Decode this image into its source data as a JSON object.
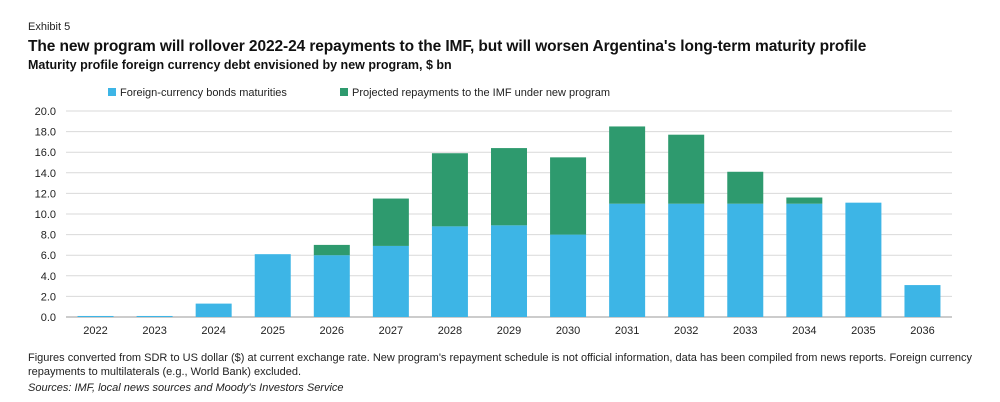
{
  "header": {
    "exhibit": "Exhibit 5",
    "title": "The new program will rollover 2022-24 repayments to the IMF, but will worsen Argentina's long-term maturity profile",
    "subtitle": "Maturity profile foreign currency debt envisioned by new program, $ bn"
  },
  "footer": {
    "note": "Figures converted from SDR to US dollar ($) at current exchange rate. New program's repayment schedule is not official information, data has been compiled from news reports. Foreign currency repayments to multilaterals (e.g., World Bank) excluded.",
    "sources": "Sources: IMF, local news sources and Moody's Investors Service"
  },
  "chart_data": {
    "type": "bar",
    "stacked": true,
    "categories": [
      "2022",
      "2023",
      "2024",
      "2025",
      "2026",
      "2027",
      "2028",
      "2029",
      "2030",
      "2031",
      "2032",
      "2033",
      "2034",
      "2035",
      "2036"
    ],
    "series": [
      {
        "name": "Foreign-currency bonds maturities",
        "color": "#3db5e6",
        "values": [
          0.1,
          0.1,
          1.3,
          6.1,
          6.0,
          6.9,
          8.8,
          8.9,
          8.0,
          11.0,
          11.0,
          11.0,
          11.0,
          11.1,
          3.1
        ]
      },
      {
        "name": "Projected repayments to the IMF under new program",
        "color": "#2e9a6e",
        "values": [
          0.0,
          0.0,
          0.0,
          0.0,
          1.0,
          4.6,
          7.1,
          7.5,
          7.5,
          7.5,
          6.7,
          3.1,
          0.6,
          0.0,
          0.0
        ]
      }
    ],
    "yticks": [
      "0.0",
      "2.0",
      "4.0",
      "6.0",
      "8.0",
      "10.0",
      "12.0",
      "14.0",
      "16.0",
      "18.0",
      "20.0"
    ],
    "ylim": [
      0,
      20
    ],
    "grid": true,
    "legend_position": "top"
  }
}
